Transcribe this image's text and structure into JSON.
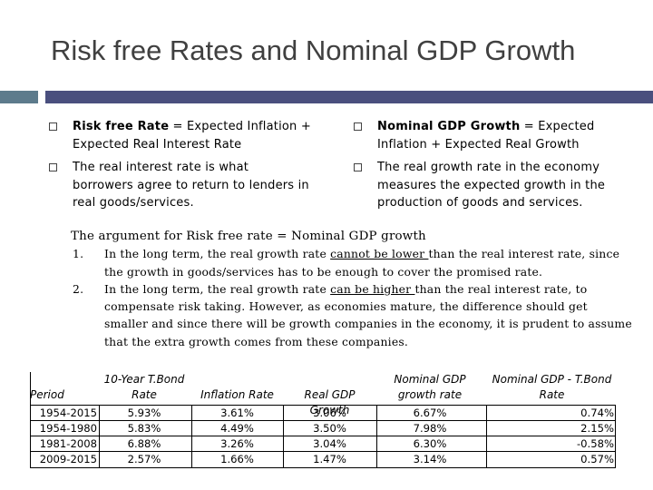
{
  "title": "Risk free Rates and Nominal GDP Growth",
  "colors": {
    "bar_left": "#5d7b8c",
    "bar_right": "#4a4f7e",
    "title": "#404040"
  },
  "left_bullets": [
    {
      "bold": "Risk free Rate",
      "text": " = Expected Inflation + Expected Real Interest Rate"
    },
    {
      "bold": "",
      "text": "The real interest rate is what borrowers agree to return to lenders in real goods/services."
    }
  ],
  "right_bullets": [
    {
      "bold": "Nominal GDP Growth",
      "text": " = Expected Inflation + Expected Real Growth"
    },
    {
      "bold": "",
      "text": "The real growth rate in the economy measures the expected growth in the production of goods and services."
    }
  ],
  "argument": {
    "heading": "The argument for Risk free rate = Nominal GDP growth",
    "items": [
      {
        "num": "1.",
        "pre": "In the long term, the real growth rate ",
        "underline": "cannot be lower ",
        "post": "than the real interest rate, since the growth in goods/services has to be enough to cover the promised rate."
      },
      {
        "num": "2.",
        "pre": "In the long term, the real growth rate ",
        "underline": "can be higher ",
        "post": "than the real interest rate, to compensate risk taking. However, as economies mature, the difference should get smaller and since there will be growth companies in the economy, it is prudent to assume that the extra growth comes from these companies."
      }
    ]
  },
  "table": {
    "headers": {
      "period": "Period",
      "tbond_line1": "10-Year T.Bond",
      "tbond_line2": "Rate",
      "inflation": "Inflation Rate",
      "real_gdp": "Real GDP Growth",
      "nominal_line1": "Nominal GDP",
      "nominal_line2": "growth rate",
      "diff_line1": "Nominal GDP - T.Bond",
      "diff_line2": "Rate"
    },
    "rows": [
      {
        "period": "1954-2015",
        "tbond": "5.93%",
        "inflation": "3.61%",
        "real_gdp": "3.06%",
        "nominal": "6.67%",
        "diff": "0.74%"
      },
      {
        "period": "1954-1980",
        "tbond": "5.83%",
        "inflation": "4.49%",
        "real_gdp": "3.50%",
        "nominal": "7.98%",
        "diff": "2.15%"
      },
      {
        "period": "1981-2008",
        "tbond": "6.88%",
        "inflation": "3.26%",
        "real_gdp": "3.04%",
        "nominal": "6.30%",
        "diff": "-0.58%"
      },
      {
        "period": "2009-2015",
        "tbond": "2.57%",
        "inflation": "1.66%",
        "real_gdp": "1.47%",
        "nominal": "3.14%",
        "diff": "0.57%"
      }
    ]
  }
}
